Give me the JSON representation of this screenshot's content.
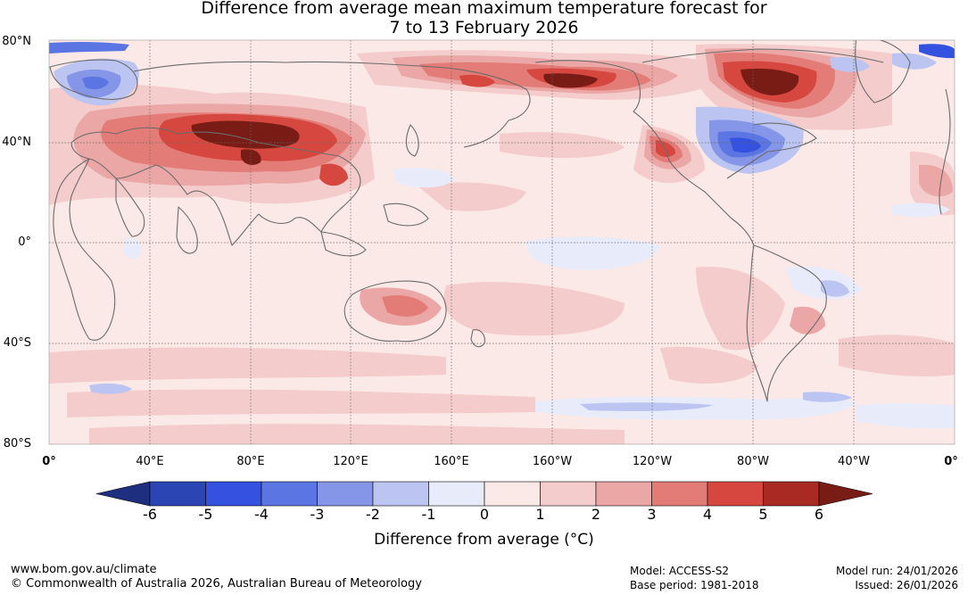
{
  "title": {
    "line1": "Difference from average mean maximum temperature forecast for",
    "line2": "7 to 13 February 2026"
  },
  "axes": {
    "lat_labels": [
      "80°N",
      "40°N",
      "0°",
      "40°S",
      "80°S"
    ],
    "lon_labels": [
      "0°",
      "40°E",
      "80°E",
      "120°E",
      "160°E",
      "160°W",
      "120°W",
      "80°W",
      "40°W",
      "0°"
    ]
  },
  "map": {
    "background_color": "#fbe9e7",
    "grid_color": "#666666",
    "coast_color": "#6b6b6b",
    "anomaly_regions": [
      {
        "name": "central-asia-warm",
        "anomaly_c": 5
      },
      {
        "name": "alaska-warm",
        "anomaly_c": 5
      },
      {
        "name": "northern-canada-warm",
        "anomaly_c": 5
      },
      {
        "name": "eastern-north-america-cold",
        "anomaly_c": -4
      },
      {
        "name": "scandinavia-cold",
        "anomaly_c": -3
      },
      {
        "name": "western-us-warm",
        "anomaly_c": 4
      },
      {
        "name": "australia-warm",
        "anomaly_c": 2
      },
      {
        "name": "southern-ocean-cool",
        "anomaly_c": -1
      }
    ]
  },
  "colorbar": {
    "colors": [
      "#1f2f80",
      "#2c45b5",
      "#3451e0",
      "#5b75e3",
      "#8596e8",
      "#bcc5f1",
      "#e8ebfa",
      "#fbe9e7",
      "#f3cccb",
      "#eba7a5",
      "#e37b77",
      "#d6483f",
      "#a82a22",
      "#7a1c16"
    ],
    "tick_labels": [
      "-6",
      "-5",
      "-4",
      "-3",
      "-2",
      "-1",
      "0",
      "1",
      "2",
      "3",
      "4",
      "5",
      "6"
    ],
    "title": "Difference from average (°C)"
  },
  "footer": {
    "website": "www.bom.gov.au/climate",
    "copyright": "© Commonwealth of Australia 2026, Australian Bureau of Meteorology",
    "model": "Model: ACCESS-S2",
    "base_period": "Base period: 1981-2018",
    "model_run": "Model run: 24/01/2026",
    "issued": "Issued: 26/01/2026"
  }
}
